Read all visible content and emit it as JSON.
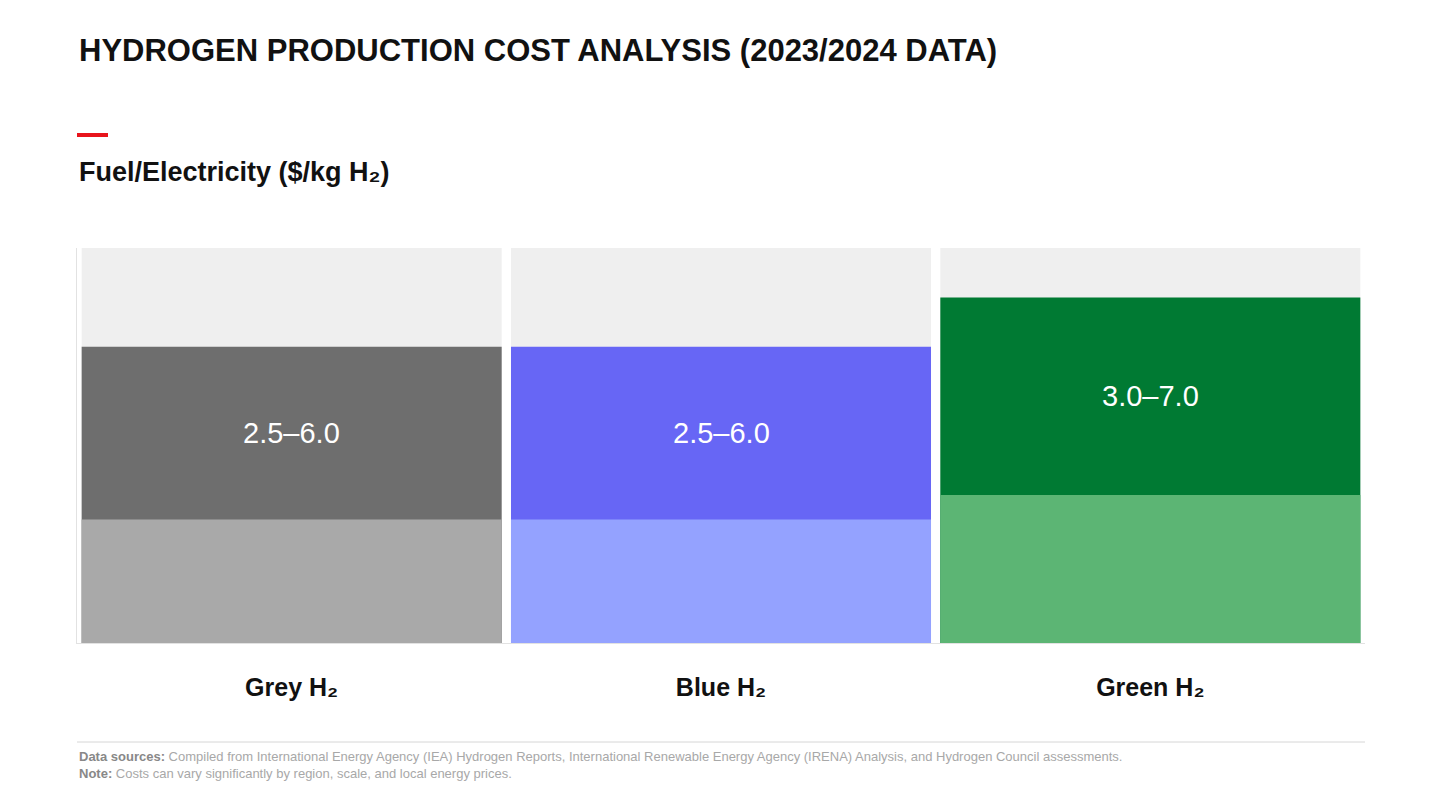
{
  "chart_data": {
    "type": "bar",
    "title": "HYDROGEN PRODUCTION COST ANALYSIS (2023/2024 DATA)",
    "subtitle": "Fuel/Electricity ($/kg H₂)",
    "categories": [
      "Grey H₂",
      "Blue H₂",
      "Green H₂"
    ],
    "series": [
      {
        "values": [
          6.0,
          6.0,
          7.0
        ],
        "colors": [
          "#6e6e6e",
          "#6766f5",
          "#007a33"
        ],
        "value_labels": [
          "2.5–6.0",
          "2.5–6.0",
          "3.0–7.0"
        ]
      },
      {
        "values": [
          2.5,
          2.5,
          3.0
        ],
        "colors": [
          "#a9a9a9",
          "#94a2ff",
          "#5cb574"
        ]
      }
    ],
    "stacked": false,
    "data_labels": true,
    "ylim": [
      0,
      8
    ],
    "yticks": [],
    "tick_labels": "x",
    "grid": false,
    "notes": [
      {
        "label": "Data sources:",
        "text": "Compiled from International Energy Agency (IEA) Hydrogen Reports, International Renewable Energy Agency (IRENA) Analysis, and Hydrogen Council assessments."
      },
      {
        "label": "Note:",
        "text": "Costs can vary significantly by region, scale, and local energy prices."
      }
    ]
  }
}
